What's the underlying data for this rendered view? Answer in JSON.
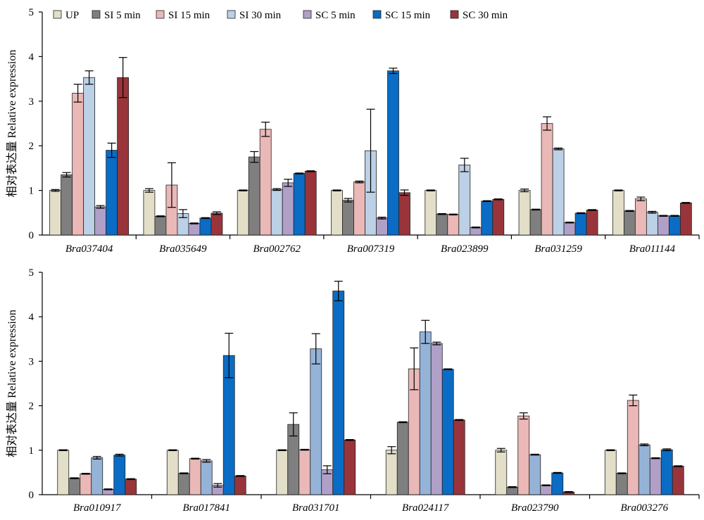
{
  "chart_data": [
    {
      "type": "bar",
      "ylabel": "相对表达量 Relative expression",
      "ylim": [
        0,
        5
      ],
      "yticks": [
        0,
        1,
        2,
        3,
        4,
        5
      ],
      "grid": false,
      "legend_position": "top-left",
      "categories": [
        "Bra037404",
        "Bra035649",
        "Bra002762",
        "Bra007319",
        "Bra023899",
        "Bra031259",
        "Bra011144"
      ],
      "series": [
        {
          "name": "UP",
          "color": "#e2dec8",
          "values": [
            1.0,
            1.0,
            1.0,
            1.0,
            1.0,
            1.0,
            1.0
          ],
          "errors": [
            0.02,
            0.04,
            0.01,
            0.01,
            0.01,
            0.03,
            0.01
          ]
        },
        {
          "name": "SI 5 min",
          "color": "#7f7f7f",
          "values": [
            1.35,
            0.42,
            1.75,
            0.78,
            0.47,
            0.57,
            0.54
          ],
          "errors": [
            0.05,
            0.01,
            0.12,
            0.04,
            0.01,
            0.01,
            0.01
          ]
        },
        {
          "name": "SI 15 min",
          "color": "#eab8b7",
          "values": [
            3.18,
            1.12,
            2.37,
            1.19,
            0.46,
            2.5,
            0.81
          ],
          "errors": [
            0.2,
            0.5,
            0.16,
            0.02,
            0.01,
            0.15,
            0.04
          ]
        },
        {
          "name": "SI 30 min",
          "color": "#bcd0e6",
          "values": [
            3.53,
            0.48,
            1.02,
            1.89,
            1.57,
            1.93,
            0.51
          ],
          "errors": [
            0.15,
            0.09,
            0.02,
            0.93,
            0.15,
            0.02,
            0.02
          ]
        },
        {
          "name": "SC 5 min",
          "color": "#b0a0c8",
          "values": [
            0.63,
            0.26,
            1.17,
            0.38,
            0.17,
            0.28,
            0.43
          ],
          "errors": [
            0.03,
            0.01,
            0.08,
            0.02,
            0.01,
            0.01,
            0.01
          ]
        },
        {
          "name": "SC 15 min",
          "color": "#0a6cc4",
          "values": [
            1.9,
            0.38,
            1.38,
            3.68,
            0.76,
            0.49,
            0.43
          ],
          "errors": [
            0.16,
            0.01,
            0.01,
            0.06,
            0.01,
            0.01,
            0.01
          ]
        },
        {
          "name": "SC 30 min",
          "color": "#99353a",
          "values": [
            3.53,
            0.49,
            1.43,
            0.95,
            0.8,
            0.56,
            0.72
          ],
          "errors": [
            0.45,
            0.03,
            0.01,
            0.06,
            0.01,
            0.01,
            0.01
          ]
        }
      ]
    },
    {
      "type": "bar",
      "ylabel": "相对表达量 Relative expression",
      "ylim": [
        0,
        5
      ],
      "yticks": [
        0,
        1,
        2,
        3,
        4,
        5
      ],
      "grid": false,
      "categories": [
        "Bra010917",
        "Bra017841",
        "Bra031701",
        "Bra024117",
        "Bra023790",
        "Bra003276"
      ],
      "series": [
        {
          "name": "UP",
          "color": "#e2dec8",
          "values": [
            1.0,
            1.0,
            1.0,
            1.0,
            1.0,
            1.0
          ],
          "errors": [
            0.01,
            0.01,
            0.01,
            0.08,
            0.04,
            0.01
          ]
        },
        {
          "name": "SI 5 min",
          "color": "#7f7f7f",
          "values": [
            0.37,
            0.48,
            1.58,
            1.63,
            0.17,
            0.48
          ],
          "errors": [
            0.01,
            0.01,
            0.26,
            0.01,
            0.01,
            0.01
          ]
        },
        {
          "name": "SI 15 min",
          "color": "#eab8b7",
          "values": [
            0.47,
            0.81,
            1.01,
            2.83,
            1.77,
            2.12
          ],
          "errors": [
            0.01,
            0.01,
            0.01,
            0.47,
            0.07,
            0.12
          ]
        },
        {
          "name": "SI 30 min",
          "color": "#95b3d7",
          "values": [
            0.83,
            0.76,
            3.28,
            3.66,
            0.9,
            1.12
          ],
          "errors": [
            0.03,
            0.03,
            0.34,
            0.26,
            0.01,
            0.02
          ]
        },
        {
          "name": "SC 5 min",
          "color": "#b0a0c8",
          "values": [
            0.12,
            0.21,
            0.56,
            3.4,
            0.21,
            0.82
          ],
          "errors": [
            0.01,
            0.04,
            0.09,
            0.03,
            0.01,
            0.01
          ]
        },
        {
          "name": "SC 15 min",
          "color": "#0a6cc4",
          "values": [
            0.89,
            3.13,
            4.58,
            2.82,
            0.49,
            1.01
          ],
          "errors": [
            0.02,
            0.5,
            0.22,
            0.01,
            0.01,
            0.02
          ]
        },
        {
          "name": "SC 30 min",
          "color": "#99353a",
          "values": [
            0.35,
            0.42,
            1.23,
            1.68,
            0.06,
            0.64
          ],
          "errors": [
            0.01,
            0.01,
            0.01,
            0.01,
            0.01,
            0.01
          ]
        }
      ]
    }
  ]
}
